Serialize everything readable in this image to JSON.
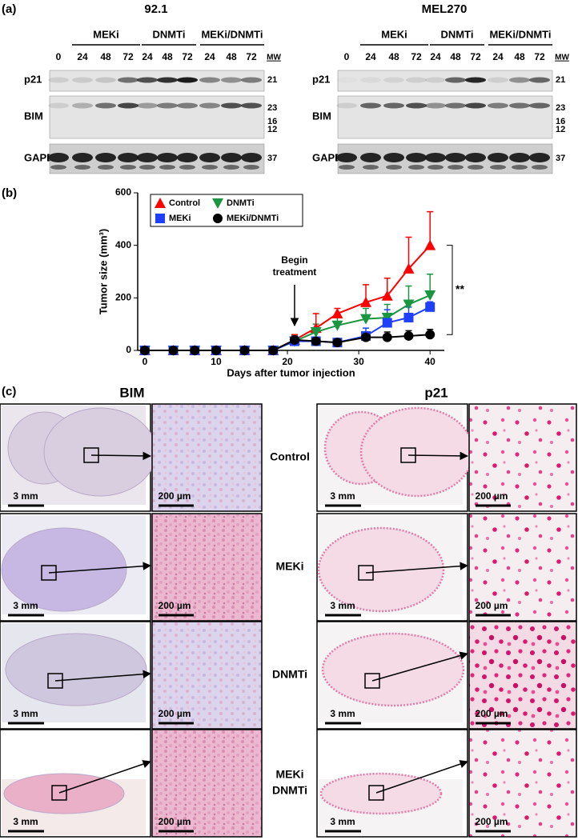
{
  "panel_a": {
    "label": "(a)",
    "blots": [
      {
        "title": "92.1"
      },
      {
        "title": "MEL270"
      }
    ],
    "groups": [
      "MEKi",
      "DNMTi",
      "MEKi/DNMTi"
    ],
    "lanes": [
      "0",
      "24",
      "48",
      "72",
      "24",
      "48",
      "72",
      "24",
      "48",
      "72"
    ],
    "mw_header": "MW",
    "rows": [
      {
        "name": "p21",
        "mw": [
          "21"
        ]
      },
      {
        "name": "BIM",
        "mw": [
          "23",
          "16",
          "12"
        ]
      },
      {
        "name": "GAPDH",
        "mw": [
          "37"
        ]
      }
    ]
  },
  "panel_b": {
    "label": "(b)"
  },
  "chart_data": {
    "type": "line",
    "x_label": "Days after tumor injection",
    "y_label": "Tumor size (mm³)",
    "x": [
      0,
      4,
      7,
      10,
      14,
      18,
      21,
      24,
      27,
      31,
      34,
      37,
      40
    ],
    "series": [
      {
        "name": "Control",
        "color": "#ff0000",
        "marker": "triangle-up",
        "values": [
          0,
          0,
          0,
          0,
          0,
          0,
          40,
          85,
          140,
          183,
          208,
          311,
          400
        ],
        "errors": [
          0,
          0,
          0,
          0,
          0,
          0,
          20,
          55,
          20,
          67,
          67,
          120,
          128
        ]
      },
      {
        "name": "DNMTi",
        "color": "#1a9641",
        "marker": "triangle-down",
        "values": [
          0,
          0,
          0,
          0,
          0,
          0,
          35,
          70,
          95,
          120,
          125,
          175,
          210
        ],
        "errors": [
          0,
          0,
          0,
          0,
          0,
          0,
          15,
          30,
          30,
          40,
          50,
          70,
          80
        ]
      },
      {
        "name": "MEKi",
        "color": "#1f3fff",
        "marker": "square",
        "values": [
          0,
          0,
          0,
          0,
          0,
          0,
          35,
          35,
          30,
          55,
          105,
          125,
          165
        ],
        "errors": [
          0,
          0,
          0,
          0,
          0,
          0,
          15,
          15,
          15,
          30,
          50,
          40,
          20
        ]
      },
      {
        "name": "MEKi/DNMTi",
        "color": "#000000",
        "marker": "circle",
        "values": [
          0,
          0,
          0,
          0,
          0,
          0,
          40,
          35,
          30,
          50,
          50,
          55,
          60
        ],
        "errors": [
          0,
          0,
          0,
          0,
          0,
          0,
          15,
          15,
          15,
          20,
          20,
          20,
          20
        ]
      }
    ],
    "xlim": [
      -1,
      42
    ],
    "ylim": [
      0,
      600
    ],
    "xticks": [
      0,
      10,
      20,
      30,
      40
    ],
    "yticks": [
      0,
      200,
      400,
      600
    ],
    "legend": "upper left",
    "annotations": [
      {
        "lines": [
          "Begin",
          "treatment"
        ],
        "x": 21
      }
    ],
    "significance": "**"
  },
  "panel_c": {
    "label": "(c)",
    "columns": [
      "BIM",
      "p21"
    ],
    "rows": [
      [
        "Control"
      ],
      [
        "MEKi"
      ],
      [
        "DNMTi"
      ],
      [
        "MEKi",
        "DNMTi"
      ]
    ],
    "scale_bars": {
      "whole": "3 mm",
      "zoom": "200 µm"
    }
  }
}
